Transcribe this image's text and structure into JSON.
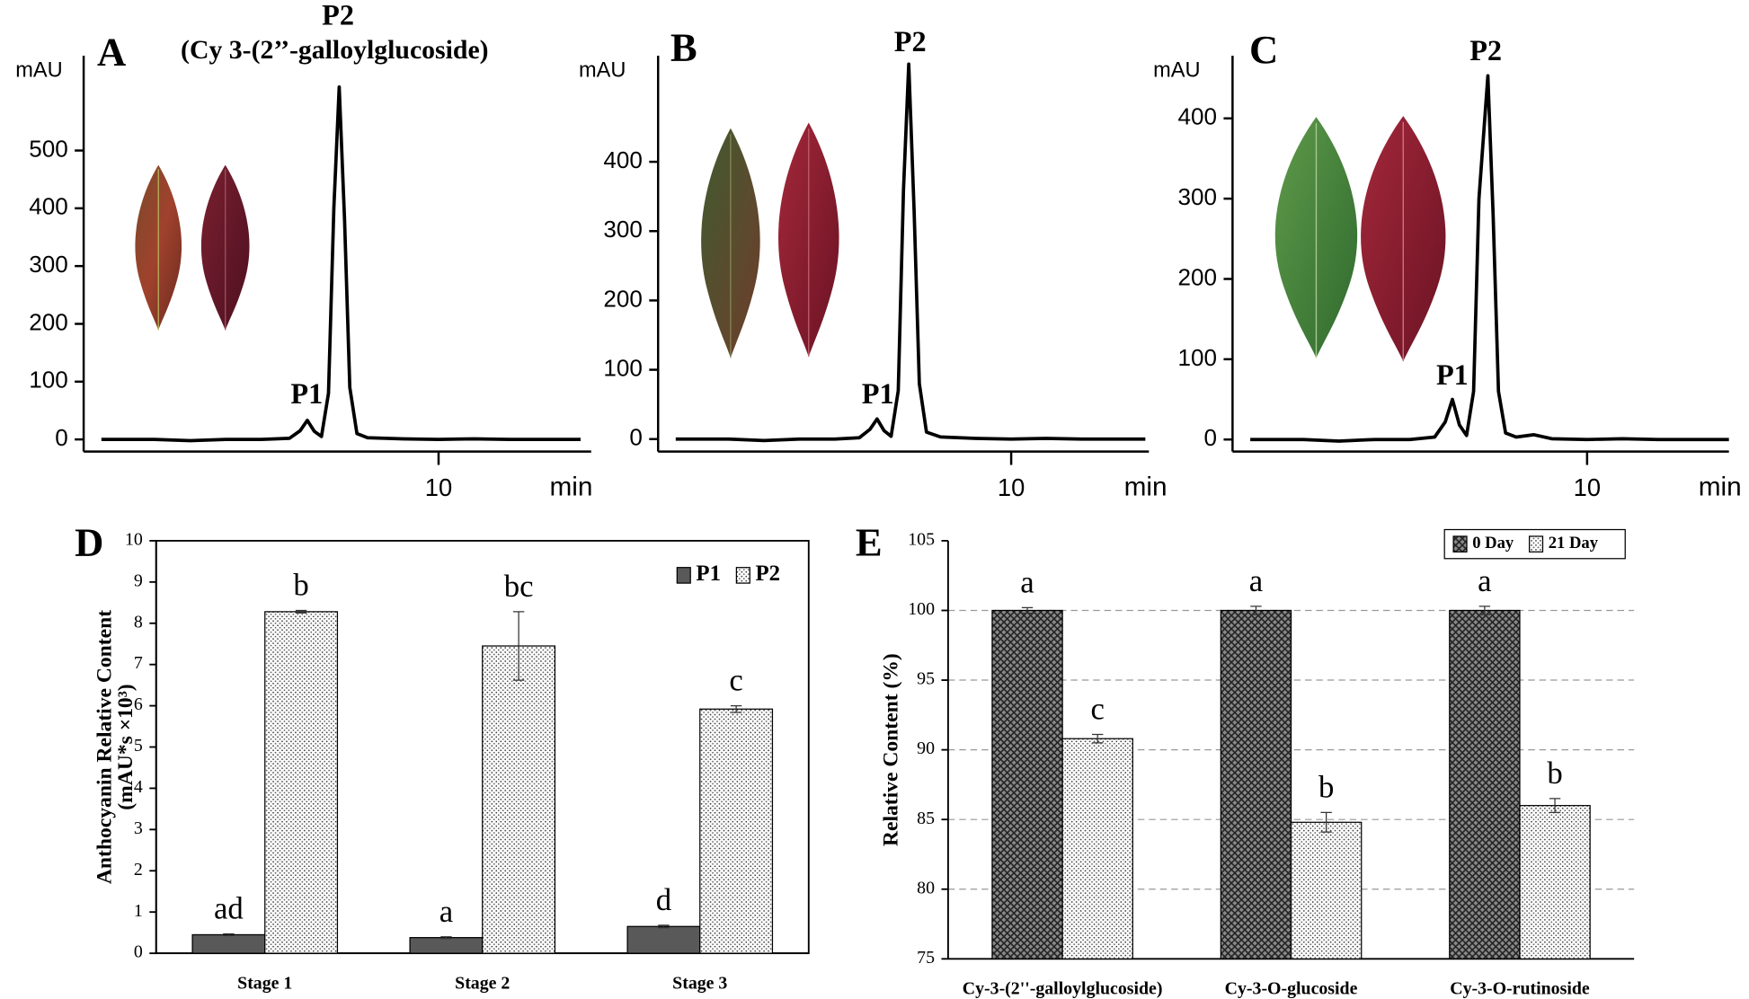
{
  "chart_data": [
    {
      "type": "line",
      "panel_label": "A",
      "annotation": "(Cy 3-(2’’-galloylglucoside)",
      "peak_labels": [
        "P1",
        "P2"
      ],
      "ylabel": "mAU",
      "xlabel": "min",
      "color": "#000000",
      "x": [
        0.5,
        2,
        3,
        4,
        5,
        5.8,
        6.1,
        6.3,
        6.5,
        6.7,
        6.9,
        7.05,
        7.2,
        7.35,
        7.5,
        7.7,
        8,
        9,
        10,
        11,
        12,
        13,
        14
      ],
      "values": [
        0,
        0,
        -2,
        0,
        0,
        2,
        15,
        33,
        14,
        5,
        80,
        400,
        610,
        380,
        90,
        10,
        3,
        1,
        0,
        1,
        0,
        0,
        0
      ],
      "xlim": [
        0,
        14.3
      ],
      "ylim": [
        -21,
        664
      ],
      "xticks": [
        10
      ],
      "yticks": [
        0,
        100,
        200,
        300,
        400,
        500
      ]
    },
    {
      "type": "line",
      "panel_label": "B",
      "peak_labels": [
        "P1",
        "P2"
      ],
      "ylabel": "mAU",
      "xlabel": "min",
      "color": "#000000",
      "x": [
        0.5,
        2,
        3,
        4,
        5,
        5.7,
        6.0,
        6.2,
        6.4,
        6.6,
        6.8,
        6.95,
        7.1,
        7.25,
        7.4,
        7.6,
        8,
        9,
        10,
        11,
        12,
        13,
        13.8
      ],
      "values": [
        0,
        0,
        -2,
        0,
        0,
        2,
        14,
        29,
        12,
        4,
        70,
        360,
        541,
        330,
        80,
        10,
        3,
        1,
        0,
        1,
        0,
        0,
        0
      ],
      "xlim": [
        0,
        13.9
      ],
      "ylim": [
        -18,
        553
      ],
      "xticks": [
        10
      ],
      "yticks": [
        0,
        100,
        200,
        300,
        400
      ]
    },
    {
      "type": "line",
      "panel_label": "C",
      "peak_labels": [
        "P1",
        "P2"
      ],
      "ylabel": "mAU",
      "xlabel": "min",
      "color": "#000000",
      "x": [
        0.5,
        2,
        3,
        4,
        5,
        5.7,
        6.0,
        6.2,
        6.4,
        6.6,
        6.8,
        6.95,
        7.2,
        7.35,
        7.5,
        7.7,
        8,
        8.5,
        9,
        10,
        11,
        12,
        13,
        14
      ],
      "values": [
        0,
        0,
        -2,
        0,
        0,
        3,
        22,
        50,
        18,
        5,
        60,
        300,
        453,
        280,
        60,
        8,
        3,
        6,
        1,
        0,
        1,
        0,
        0,
        0
      ],
      "xlim": [
        0,
        14.0
      ],
      "ylim": [
        -15,
        478
      ],
      "xticks": [
        10
      ],
      "yticks": [
        0,
        100,
        200,
        300,
        400
      ]
    },
    {
      "type": "bar",
      "panel_label": "D",
      "ylabel": [
        "Anthocyanin  Relative Content",
        "(mAU*s ×10³)"
      ],
      "categories": [
        "Stage 1",
        "Stage 2",
        "Stage 3"
      ],
      "series": [
        {
          "name": "P1",
          "color": "#595959",
          "pattern": "solid",
          "values": [
            0.45,
            0.38,
            0.65
          ],
          "errors": [
            0.02,
            0.02,
            0.03
          ],
          "letters": [
            "ad",
            "a",
            "d"
          ]
        },
        {
          "name": "P2",
          "color": "#e8e8e8",
          "pattern": "dots",
          "values": [
            8.28,
            7.45,
            5.92
          ],
          "errors": [
            0.03,
            0.83,
            0.08
          ],
          "letters": [
            "b",
            "bc",
            "c"
          ]
        }
      ],
      "ylim": [
        0,
        10
      ],
      "yticks": [
        0,
        1,
        2,
        3,
        4,
        5,
        6,
        7,
        8,
        9,
        10
      ],
      "grid": false,
      "frame": true,
      "legend": "upper right"
    },
    {
      "type": "bar",
      "panel_label": "E",
      "ylabel": [
        "Relative Content  (%)"
      ],
      "categories": [
        "Cy-3-(2''-galloylglucoside)",
        "Cy-3-O-glucoside",
        "Cy-3-O-rutinoside"
      ],
      "series": [
        {
          "name": "0 Day",
          "color": "#6a6a6a",
          "pattern": "crosshatch",
          "values": [
            100,
            100,
            100
          ],
          "errors": [
            0.2,
            0.3,
            0.3
          ],
          "letters": [
            "a",
            "a",
            "a"
          ]
        },
        {
          "name": "21 Day",
          "color": "#f4f4f4",
          "pattern": "dots",
          "values": [
            90.8,
            84.8,
            86.0
          ],
          "errors": [
            0.3,
            0.7,
            0.5
          ],
          "letters": [
            "c",
            "b",
            "b"
          ]
        }
      ],
      "ylim": [
        75,
        105
      ],
      "yticks": [
        75,
        80,
        85,
        90,
        95,
        100,
        105
      ],
      "grid": true,
      "frame": false,
      "legend": "upper right"
    }
  ]
}
